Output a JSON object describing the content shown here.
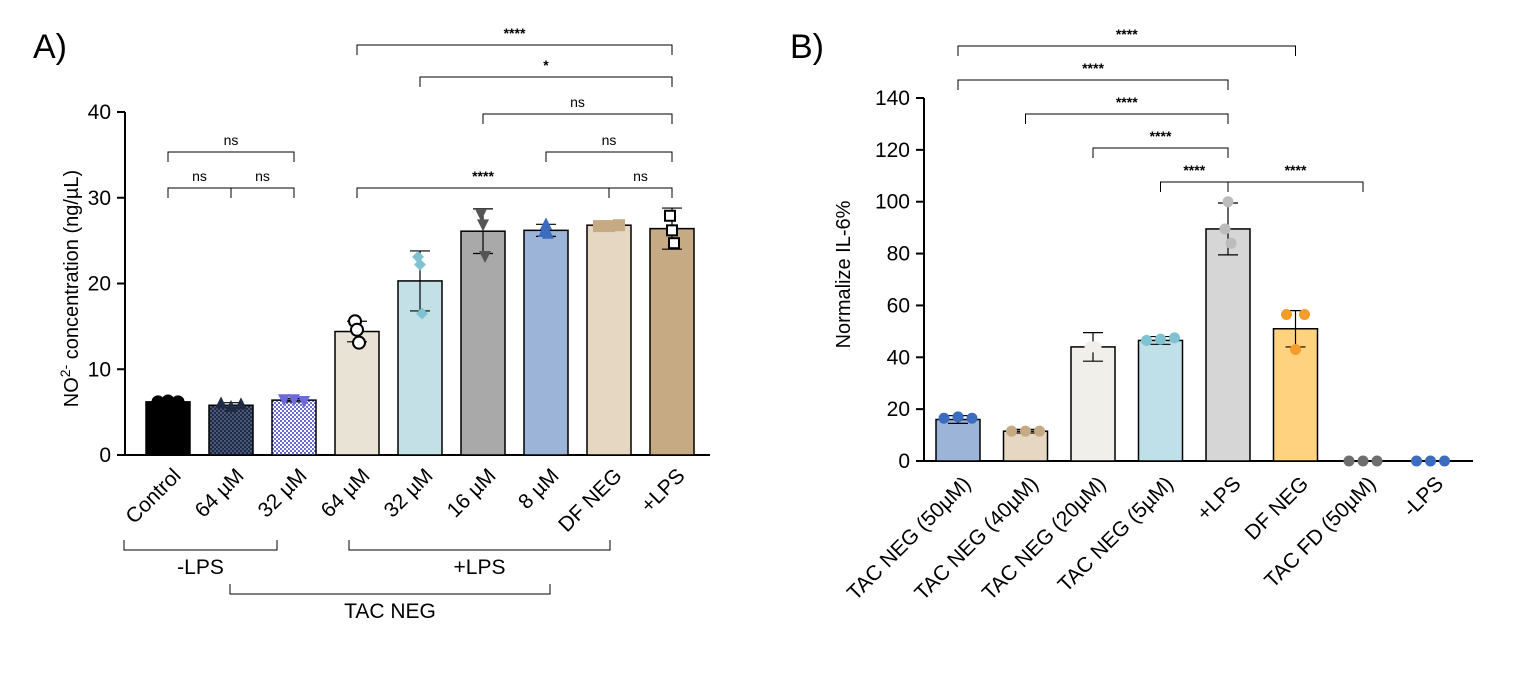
{
  "chart_data": [
    {
      "type": "bar",
      "panel": "A)",
      "ylabel": "NO2- concentration (ng/µL)",
      "ylabel_main": "NO",
      "ylabel_sup": "2-",
      "ylabel_rest": " concentration (ng/µL)",
      "ylim": [
        0,
        40
      ],
      "yticks": [
        "0",
        "10",
        "20",
        "30",
        "40"
      ],
      "categories": [
        "Control",
        "64  µM",
        "32  µM",
        "64 µM",
        "32  µM",
        "16  µM",
        "8  µM",
        "DF NEG",
        "+LPS"
      ],
      "values": [
        6.2,
        5.8,
        6.4,
        14.4,
        20.3,
        26.1,
        26.2,
        26.8,
        26.4
      ],
      "sd": [
        0.2,
        0.3,
        0.2,
        1.2,
        3.5,
        2.6,
        0.7,
        0.2,
        2.4
      ],
      "points": [
        [
          6.2,
          6.3,
          6.2
        ],
        [
          6.0,
          5.6,
          5.9
        ],
        [
          6.5,
          6.5,
          6.3
        ],
        [
          15.6,
          14.6,
          13.1
        ],
        [
          23.1,
          22.2,
          16.5
        ],
        [
          28.1,
          26.9,
          23.2
        ],
        [
          26.0,
          26.9,
          25.8
        ],
        [
          26.7,
          26.7,
          26.8
        ],
        [
          27.9,
          26.2,
          24.7
        ]
      ],
      "colors": [
        "#000000",
        "#1f2a44",
        "#6a6ad8",
        "#e9e3d6",
        "#c3e0e7",
        "#a9a9a9",
        "#9db4d9",
        "#e5d7c1",
        "#c5aa84"
      ],
      "markers": [
        "circle",
        "triangle",
        "triangle-down",
        "open-circle",
        "diamond",
        "triangle-down",
        "triangle",
        "square",
        "open-square"
      ],
      "group_labels": [
        "-LPS",
        "+LPS",
        "TAC NEG"
      ],
      "comparisons": [
        {
          "from": 0,
          "to": 1,
          "label": "ns"
        },
        {
          "from": 1,
          "to": 2,
          "label": "ns"
        },
        {
          "from": 0,
          "to": 2,
          "label": "ns"
        },
        {
          "from": 3,
          "to": 7,
          "label": "****"
        },
        {
          "from": 7,
          "to": 8,
          "label": "ns"
        },
        {
          "from": 6,
          "to": 8,
          "label": "ns"
        },
        {
          "from": 5,
          "to": 8,
          "label": "ns"
        },
        {
          "from": 4,
          "to": 8,
          "label": "*"
        },
        {
          "from": 3,
          "to": 8,
          "label": "****"
        }
      ]
    },
    {
      "type": "bar",
      "panel": "B)",
      "ylabel": "Normalize IL-6%",
      "ylim": [
        0,
        140
      ],
      "yticks": [
        "0",
        "20",
        "40",
        "60",
        "80",
        "100",
        "120",
        "140"
      ],
      "categories": [
        "TAC NEG (50µM)",
        "TAC NEG (40µM)",
        "TAC NEG (20µM)",
        "TAC NEG (5µM)",
        "+LPS",
        "DF NEG",
        "TAC FD (50µM)",
        "-LPS"
      ],
      "values": [
        16.0,
        11.5,
        44.0,
        46.5,
        89.5,
        51.0,
        0,
        0
      ],
      "sd": [
        1.5,
        0.7,
        5.5,
        1.5,
        10.0,
        7.0,
        0,
        0
      ],
      "points": [
        [
          16.5,
          17.0,
          16.5
        ],
        [
          11.5,
          11.5,
          11.5
        ],
        [
          44,
          44,
          44
        ],
        [
          46.5,
          47,
          47.5
        ],
        [
          100,
          89.5,
          84
        ],
        [
          56.5,
          56.5,
          43
        ],
        [
          0,
          0,
          0
        ],
        [
          0,
          0,
          0
        ]
      ],
      "colors": [
        "#9db4d9",
        "#e5d7c1",
        "#f1efea",
        "#bfe0e8",
        "#d6d6d6",
        "#ffd27f",
        "#777777",
        "#3b6cc0"
      ],
      "point_colors": [
        "#3b6cc0",
        "#c5aa84",
        "#f1efea",
        "#7fc3d3",
        "#bcbcbc",
        "#f59b2a",
        "#6e6e6e",
        "#3b6cc0"
      ],
      "comparisons": [
        {
          "from": 3,
          "to": 4,
          "label": "****"
        },
        {
          "from": 4,
          "to": 6,
          "label": "****"
        },
        {
          "from": 2,
          "to": 4,
          "label": "****"
        },
        {
          "from": 1,
          "to": 4,
          "label": "****"
        },
        {
          "from": 0,
          "to": 4,
          "label": "****"
        },
        {
          "from": 0,
          "to": 5,
          "label": "****"
        }
      ]
    }
  ]
}
